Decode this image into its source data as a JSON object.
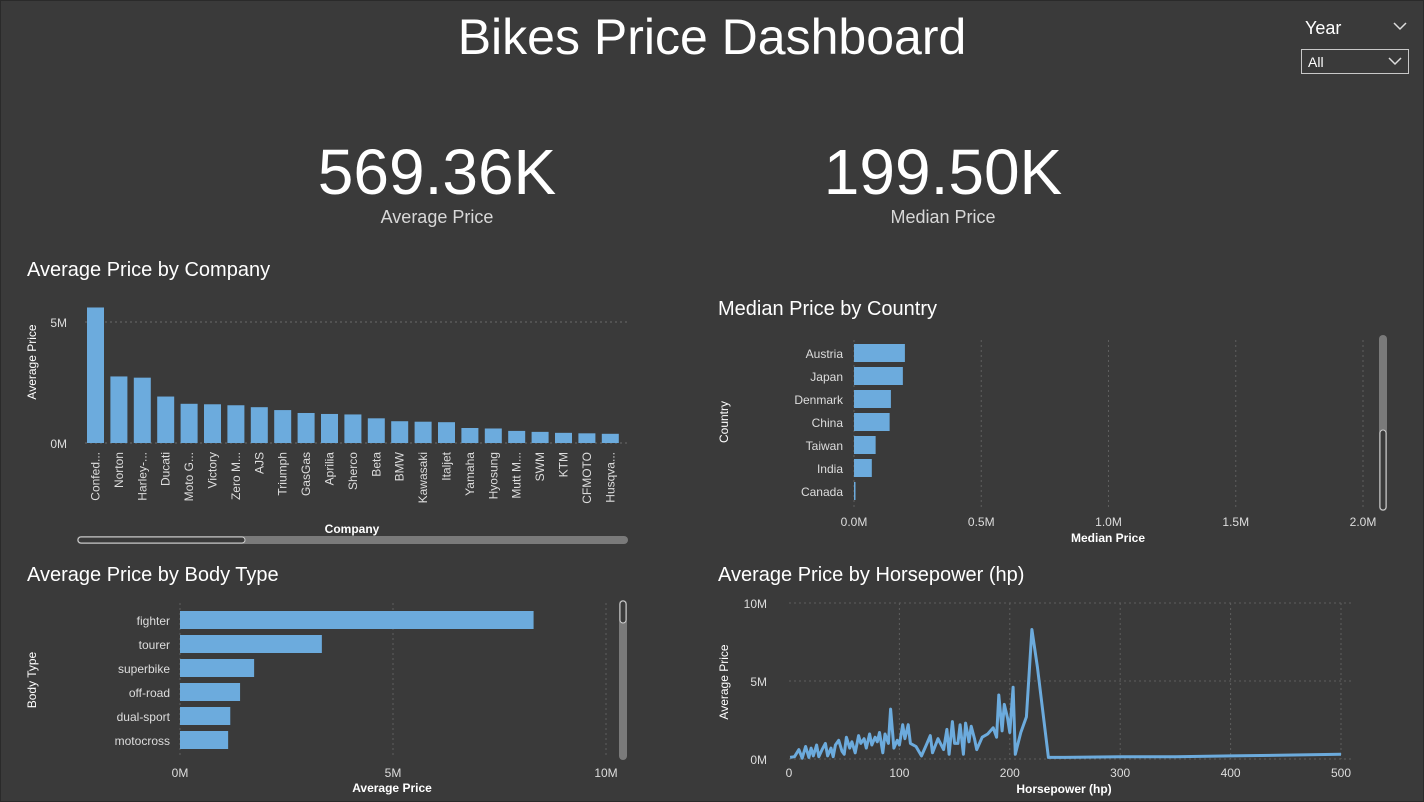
{
  "title": "Bikes Price Dashboard",
  "slicer": {
    "label": "Year",
    "value": "All"
  },
  "kpis": [
    {
      "value": "569.36K",
      "label": "Average Price"
    },
    {
      "value": "199.50K",
      "label": "Median Price"
    }
  ],
  "colors": {
    "bar": "#6cabdd",
    "background": "#3a3a3a"
  },
  "charts": {
    "company": {
      "title": "Average Price by Company",
      "xlabel": "Company",
      "ylabel": "Average Price",
      "ticks": [
        "0M",
        "5M"
      ]
    },
    "country": {
      "title": "Median Price by Country",
      "xlabel": "Median Price",
      "ylabel": "Country",
      "ticks": [
        "0.0M",
        "0.5M",
        "1.0M",
        "1.5M",
        "2.0M"
      ]
    },
    "body": {
      "title": "Average Price by Body Type",
      "xlabel": "Average Price",
      "ylabel": "Body Type",
      "ticks": [
        "0M",
        "5M",
        "10M"
      ]
    },
    "hp": {
      "title": "Average Price by Horsepower (hp)",
      "xlabel": "Horsepower (hp)",
      "ylabel": "Average Price",
      "yticks": [
        "0M",
        "5M",
        "10M"
      ],
      "xticks": [
        "0",
        "100",
        "200",
        "300",
        "400",
        "500"
      ]
    }
  },
  "chart_data": [
    {
      "type": "bar",
      "title": "Average Price by Company",
      "xlabel": "Company",
      "ylabel": "Average Price",
      "ylim": [
        0,
        5500000
      ],
      "categories": [
        "Confed...",
        "Norton",
        "Harley-...",
        "Ducati",
        "Moto G...",
        "Victory",
        "Zero M...",
        "AJS",
        "Triumph",
        "GasGas",
        "Aprilia",
        "Sherco",
        "Beta",
        "BMW",
        "Kawasaki",
        "Italjet",
        "Yamaha",
        "Hyosung",
        "Mutt M...",
        "SWM",
        "KTM",
        "CFMOTO",
        "Husqva..."
      ],
      "values": [
        5600000,
        2750000,
        2700000,
        1920000,
        1620000,
        1600000,
        1560000,
        1480000,
        1360000,
        1240000,
        1200000,
        1180000,
        1020000,
        900000,
        880000,
        860000,
        620000,
        600000,
        500000,
        460000,
        420000,
        400000,
        380000
      ]
    },
    {
      "type": "bar",
      "orientation": "horizontal",
      "title": "Median Price by Country",
      "xlabel": "Median Price",
      "ylabel": "Country",
      "xlim": [
        0,
        2000000
      ],
      "categories": [
        "Austria",
        "Japan",
        "Denmark",
        "China",
        "Taiwan",
        "India",
        "Canada"
      ],
      "values": [
        200000,
        192000,
        145000,
        140000,
        85000,
        70000,
        5000
      ]
    },
    {
      "type": "bar",
      "orientation": "horizontal",
      "title": "Average Price by Body Type",
      "xlabel": "Average Price",
      "ylabel": "Body Type",
      "xlim": [
        0,
        10000000
      ],
      "categories": [
        "fighter",
        "tourer",
        "superbike",
        "off-road",
        "dual-sport",
        "motocross"
      ],
      "values": [
        8300000,
        3330000,
        1740000,
        1410000,
        1180000,
        1130000
      ]
    },
    {
      "type": "line",
      "title": "Average Price by Horsepower (hp)",
      "xlabel": "Horsepower (hp)",
      "ylabel": "Average Price",
      "xlim": [
        0,
        500
      ],
      "ylim": [
        0,
        10000000
      ],
      "x": [
        1,
        5,
        9,
        12,
        15,
        18,
        20,
        22,
        25,
        27,
        30,
        33,
        35,
        38,
        40,
        42,
        45,
        48,
        50,
        52,
        55,
        57,
        60,
        63,
        65,
        68,
        70,
        73,
        75,
        78,
        80,
        82,
        85,
        87,
        90,
        92,
        95,
        98,
        100,
        103,
        105,
        108,
        110,
        115,
        120,
        125,
        128,
        130,
        135,
        140,
        143,
        145,
        148,
        150,
        153,
        155,
        158,
        160,
        163,
        165,
        168,
        170,
        175,
        180,
        185,
        188,
        190,
        193,
        195,
        198,
        200,
        203,
        205,
        210,
        215,
        220,
        225,
        230,
        235,
        250,
        300,
        350,
        400,
        450,
        500
      ],
      "values": [
        100000,
        150000,
        600000,
        50000,
        800000,
        100000,
        700000,
        200000,
        900000,
        150000,
        600000,
        1000000,
        200000,
        700000,
        150000,
        900000,
        1200000,
        500000,
        300000,
        1400000,
        700000,
        1100000,
        400000,
        1500000,
        1000000,
        1300000,
        700000,
        1600000,
        900000,
        1400000,
        1100000,
        1700000,
        400000,
        1600000,
        1000000,
        3200000,
        700000,
        1200000,
        900000,
        2200000,
        1300000,
        2200000,
        1000000,
        800000,
        200000,
        1000000,
        1500000,
        400000,
        1300000,
        600000,
        1900000,
        300000,
        2400000,
        1000000,
        1000000,
        2200000,
        300000,
        2300000,
        1100000,
        2100000,
        1300000,
        600000,
        1400000,
        1600000,
        2000000,
        1400000,
        4100000,
        1800000,
        3500000,
        2600000,
        1700000,
        4600000,
        300000,
        1700000,
        2700000,
        8300000,
        5900000,
        3000000,
        100000,
        100000,
        150000,
        150000,
        200000,
        250000,
        300000
      ]
    }
  ]
}
